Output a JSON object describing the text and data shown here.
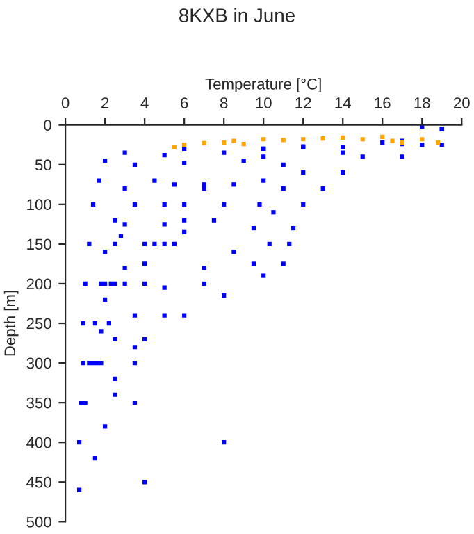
{
  "chart_data": {
    "type": "scatter",
    "title": "8KXB in June",
    "xlabel": "Temperature [°C]",
    "ylabel": "Depth [m]",
    "xlim": [
      0,
      20
    ],
    "ylim": [
      500,
      0
    ],
    "xticks": [
      0,
      2,
      4,
      6,
      8,
      10,
      12,
      14,
      16,
      18,
      20
    ],
    "yticks": [
      0,
      50,
      100,
      150,
      200,
      250,
      300,
      350,
      400,
      450,
      500
    ],
    "grid": false,
    "marker": "square",
    "series": [
      {
        "color": "#0000ff",
        "x": [
          18,
          16,
          12,
          6,
          3,
          2,
          1.7,
          1.4,
          1.2,
          1.0,
          0.9,
          0.9,
          0.8,
          0.7,
          0.7,
          19,
          17,
          10,
          5,
          3.5,
          3,
          2.5,
          2,
          1.8,
          1.5,
          1.2,
          1.0,
          14,
          8,
          6,
          4.5,
          3.5,
          2.8,
          2.3,
          1.8,
          1.4,
          19,
          17,
          14,
          11,
          10,
          9.8,
          9.5,
          8.5,
          7,
          5,
          3.5,
          2.5,
          1.8,
          18,
          15,
          12,
          11,
          10.5,
          10.3,
          9.5,
          7,
          5,
          3.5,
          2.5,
          19,
          17,
          14,
          13,
          12,
          11.5,
          11.3,
          11,
          10,
          8,
          6,
          4,
          3.5,
          2.5,
          2,
          1.5,
          10,
          9,
          7,
          6,
          5,
          4,
          3,
          2.2,
          1.6,
          12,
          10,
          7.5,
          6,
          4.5,
          3,
          2,
          3.5,
          8,
          4,
          7,
          8.5,
          5.5,
          5,
          6,
          8,
          3,
          5,
          2.5,
          4,
          5.5,
          2,
          2.5,
          4
        ],
        "values": [
          2,
          22,
          27,
          30,
          35,
          45,
          70,
          100,
          150,
          200,
          250,
          300,
          350,
          400,
          460,
          5,
          24,
          30,
          38,
          50,
          80,
          120,
          160,
          200,
          250,
          300,
          350,
          28,
          35,
          48,
          70,
          100,
          140,
          200,
          260,
          300,
          5,
          20,
          35,
          50,
          70,
          100,
          130,
          160,
          180,
          205,
          240,
          270,
          300,
          25,
          40,
          60,
          80,
          110,
          150,
          175,
          200,
          240,
          280,
          320,
          25,
          40,
          60,
          80,
          100,
          130,
          150,
          175,
          190,
          215,
          240,
          270,
          300,
          340,
          380,
          420,
          30,
          45,
          80,
          120,
          150,
          175,
          200,
          250,
          300,
          28,
          40,
          120,
          135,
          150,
          180,
          220,
          350,
          400,
          450,
          75,
          75,
          75,
          100,
          100,
          100,
          125,
          125,
          150,
          150,
          150,
          200,
          200,
          200
        ]
      },
      {
        "color": "#ffa500",
        "x": [
          5.5,
          6,
          7,
          8,
          8.5,
          9,
          10,
          11,
          12,
          13,
          14,
          15,
          16,
          16.5,
          17,
          18,
          18.8
        ],
        "values": [
          28,
          25,
          23,
          22,
          20,
          24,
          18,
          19,
          18,
          17,
          16,
          18,
          15,
          20,
          22,
          18,
          22
        ]
      }
    ]
  }
}
